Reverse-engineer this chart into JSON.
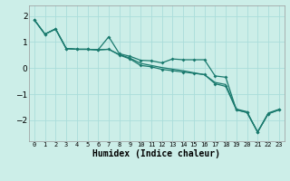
{
  "xlabel": "Humidex (Indice chaleur)",
  "background_color": "#cceee8",
  "grid_color": "#aaddda",
  "line_color": "#1a7a6e",
  "x_values": [
    0,
    1,
    2,
    3,
    4,
    5,
    6,
    7,
    8,
    9,
    10,
    11,
    12,
    13,
    14,
    15,
    16,
    17,
    18,
    19,
    20,
    21,
    22,
    23
  ],
  "line1_y": [
    1.85,
    1.3,
    1.5,
    0.75,
    0.72,
    0.72,
    0.7,
    1.2,
    0.55,
    0.45,
    0.3,
    0.28,
    0.2,
    0.35,
    0.32,
    0.32,
    0.32,
    -0.3,
    -0.35,
    -1.6,
    -1.7,
    -2.45,
    -1.75,
    -1.6
  ],
  "line2_y": [
    1.85,
    1.3,
    1.5,
    0.75,
    0.72,
    0.72,
    0.7,
    0.72,
    0.5,
    0.35,
    0.1,
    0.05,
    -0.05,
    -0.1,
    -0.15,
    -0.2,
    -0.25,
    -0.6,
    -0.7,
    -1.6,
    -1.7,
    -2.45,
    -1.75,
    -1.6
  ],
  "line3_y": [
    1.85,
    1.3,
    1.5,
    0.75,
    0.72,
    0.72,
    0.7,
    0.72,
    0.52,
    0.38,
    0.18,
    0.1,
    0.02,
    -0.04,
    -0.1,
    -0.18,
    -0.25,
    -0.55,
    -0.63,
    -1.57,
    -1.67,
    -2.45,
    -1.72,
    -1.58
  ],
  "ylim": [
    -2.8,
    2.4
  ],
  "xlim": [
    -0.5,
    23.5
  ],
  "yticks": [
    2,
    1,
    0,
    -1,
    -2
  ],
  "xtick_labels": [
    "0",
    "1",
    "2",
    "3",
    "4",
    "5",
    "6",
    "7",
    "8",
    "9",
    "10",
    "11",
    "12",
    "13",
    "14",
    "15",
    "16",
    "17",
    "18",
    "19",
    "20",
    "21",
    "22",
    "23"
  ]
}
